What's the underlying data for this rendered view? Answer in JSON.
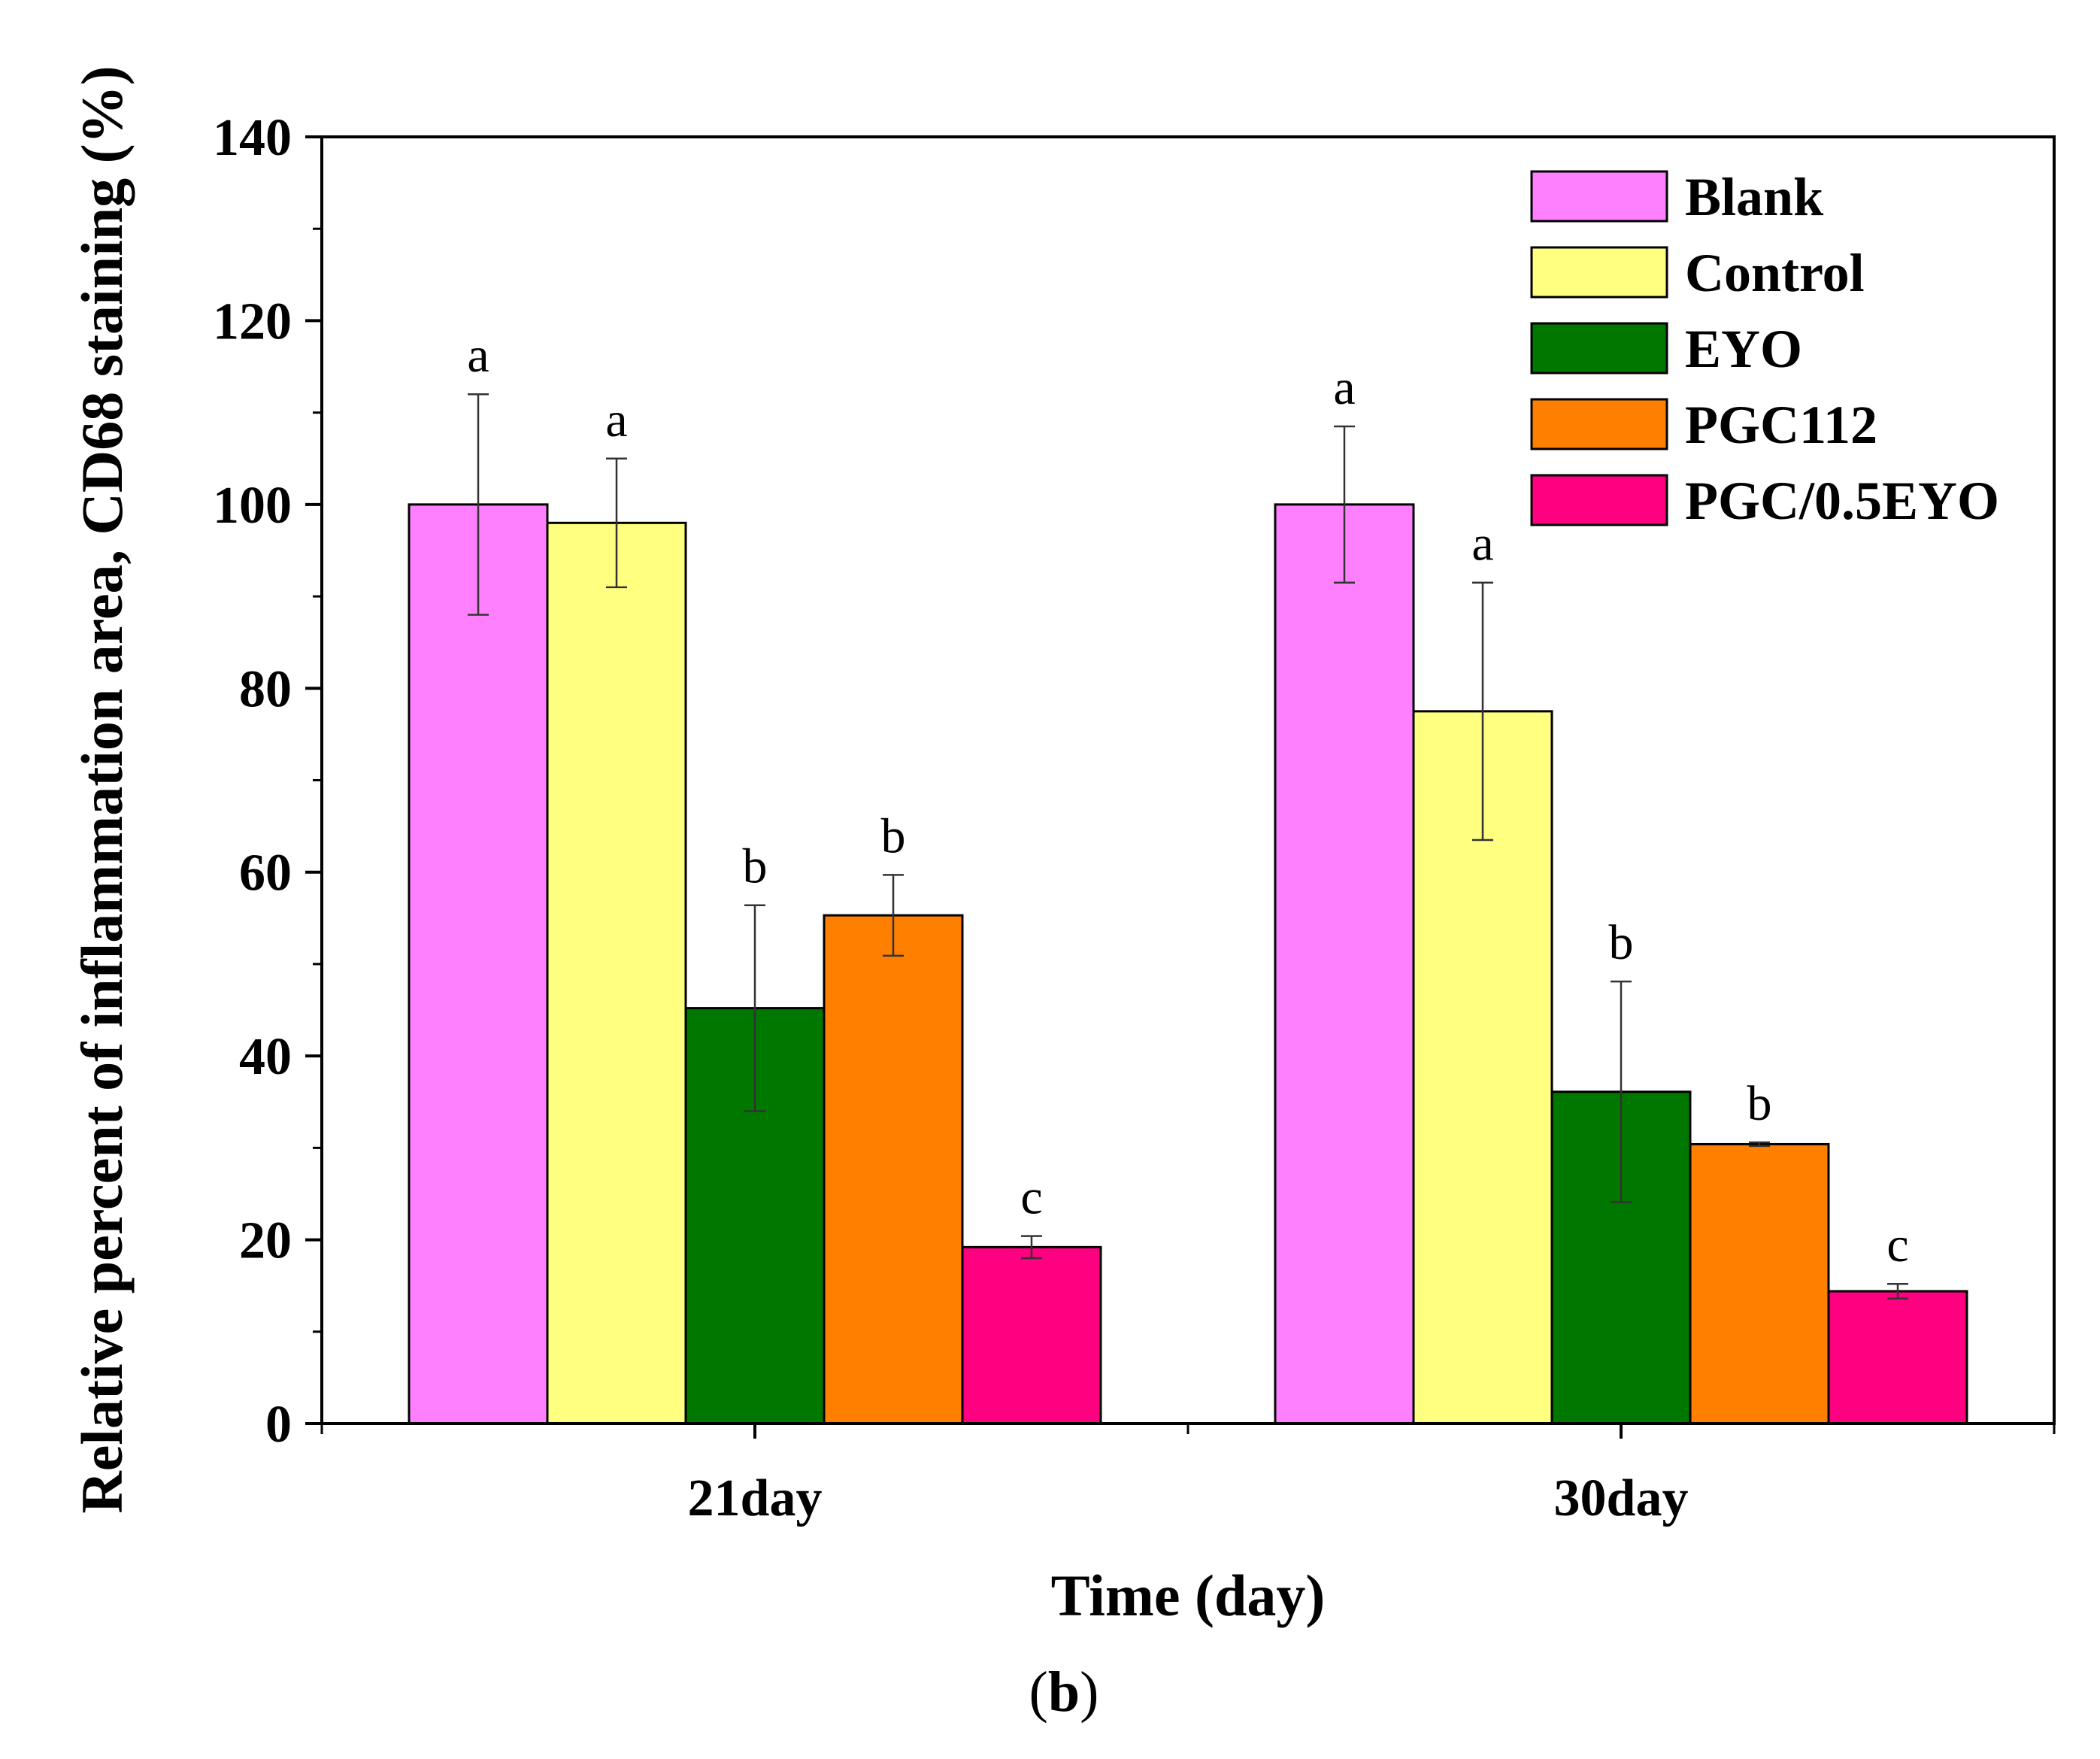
{
  "chart_data": {
    "type": "bar",
    "categories": [
      "21day",
      "30day"
    ],
    "series": [
      {
        "name": "Blank",
        "color": "#FF80FF",
        "values": [
          100,
          100
        ],
        "errors": [
          12,
          8.5
        ],
        "labels": [
          "a",
          "a"
        ]
      },
      {
        "name": "Control",
        "color": "#FFFF80",
        "values": [
          98,
          77.5
        ],
        "errors": [
          7,
          14
        ],
        "labels": [
          "a",
          "a"
        ]
      },
      {
        "name": "EYO",
        "color": "#007800",
        "values": [
          45.2,
          36.1
        ],
        "errors": [
          11.2,
          12
        ],
        "labels": [
          "b",
          "b"
        ]
      },
      {
        "name": "PGC112",
        "color": "#FF8000",
        "values": [
          55.3,
          30.4
        ],
        "errors": [
          4.4,
          0.2
        ],
        "labels": [
          "b",
          "b"
        ]
      },
      {
        "name": "PGC/0.5EYO",
        "color": "#FF0080",
        "values": [
          19.2,
          14.4
        ],
        "errors": [
          1.2,
          0.8
        ],
        "labels": [
          "c",
          "c"
        ]
      }
    ],
    "xlabel": "Time (day)",
    "ylabel": "Relative percent of inflammation area, CD68 staining (%)",
    "ylim": [
      0,
      140
    ],
    "yticks": [
      0,
      20,
      40,
      60,
      80,
      100,
      120,
      140
    ],
    "legend": "top-right",
    "grid": false
  },
  "panel_label": {
    "open": "(",
    "letter": "b",
    "close": ")"
  }
}
